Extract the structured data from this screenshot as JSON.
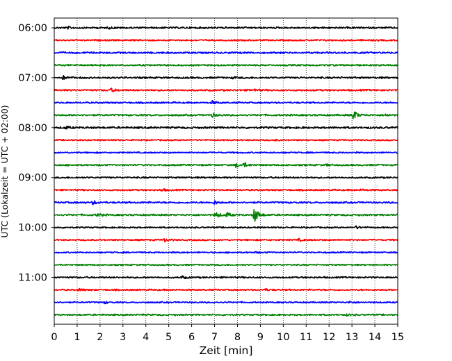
{
  "chart_data": {
    "type": "line",
    "chart_kind": "helicorder seismogram",
    "xlabel": "Zeit  [min]",
    "ylabel": "UTC (Lokalzeit = UTC + 02:00)",
    "xlim": [
      0,
      15
    ],
    "x_ticks": [
      "0",
      "1",
      "2",
      "3",
      "4",
      "5",
      "6",
      "7",
      "8",
      "9",
      "10",
      "11",
      "12",
      "13",
      "14",
      "15"
    ],
    "vertical_grid": "dotted, every 1 min",
    "start_time": "06:00",
    "minutes_per_line": 15,
    "y_tick_labels": [
      "06:00",
      "07:00",
      "08:00",
      "09:00",
      "10:00",
      "11:00"
    ],
    "colors": [
      "#000000",
      "#ff0000",
      "#0000ff",
      "#008000"
    ],
    "traces": [
      {
        "row": 0,
        "color": "#000000",
        "amplitude": 1.0,
        "events": [
          {
            "t": 0.6,
            "amp": 1.2
          },
          {
            "t": 2.4,
            "amp": 0.8
          }
        ]
      },
      {
        "row": 1,
        "color": "#ff0000",
        "amplitude": 0.9,
        "events": []
      },
      {
        "row": 2,
        "color": "#0000ff",
        "amplitude": 1.0,
        "events": []
      },
      {
        "row": 3,
        "color": "#008000",
        "amplitude": 0.9,
        "events": [
          {
            "t": 1.9,
            "amp": 2.0
          }
        ]
      },
      {
        "row": 4,
        "color": "#000000",
        "amplitude": 1.0,
        "events": [
          {
            "t": 0.4,
            "amp": 2.2
          },
          {
            "t": 7.8,
            "amp": 1.0
          }
        ]
      },
      {
        "row": 5,
        "color": "#ff0000",
        "amplitude": 1.0,
        "events": [
          {
            "t": 2.5,
            "amp": 2.2
          },
          {
            "t": 8.7,
            "amp": 1.6
          }
        ]
      },
      {
        "row": 6,
        "color": "#0000ff",
        "amplitude": 0.9,
        "events": [
          {
            "t": 6.9,
            "amp": 2.0
          }
        ]
      },
      {
        "row": 7,
        "color": "#008000",
        "amplitude": 1.0,
        "events": [
          {
            "t": 6.9,
            "amp": 2.8
          },
          {
            "t": 13.05,
            "amp": 8.0
          },
          {
            "t": 14.5,
            "amp": 1.6
          }
        ]
      },
      {
        "row": 8,
        "color": "#000000",
        "amplitude": 1.1,
        "events": [
          {
            "t": 0.5,
            "amp": 1.8
          }
        ]
      },
      {
        "row": 9,
        "color": "#ff0000",
        "amplitude": 0.8,
        "events": [
          {
            "t": 9.6,
            "amp": 1.0
          }
        ]
      },
      {
        "row": 10,
        "color": "#0000ff",
        "amplitude": 0.8,
        "events": []
      },
      {
        "row": 11,
        "color": "#008000",
        "amplitude": 0.9,
        "events": [
          {
            "t": 7.95,
            "amp": 3.6
          },
          {
            "t": 8.3,
            "amp": 3.0
          },
          {
            "t": 11.9,
            "amp": 1.2
          }
        ]
      },
      {
        "row": 12,
        "color": "#000000",
        "amplitude": 0.9,
        "events": []
      },
      {
        "row": 13,
        "color": "#ff0000",
        "amplitude": 0.9,
        "events": [
          {
            "t": 4.7,
            "amp": 1.8
          },
          {
            "t": 13.4,
            "amp": 1.2
          }
        ]
      },
      {
        "row": 14,
        "color": "#0000ff",
        "amplitude": 1.0,
        "events": [
          {
            "t": 1.7,
            "amp": 2.6
          },
          {
            "t": 7.0,
            "amp": 2.6
          }
        ]
      },
      {
        "row": 15,
        "color": "#008000",
        "amplitude": 1.0,
        "events": [
          {
            "t": 1.9,
            "amp": 2.2
          },
          {
            "t": 7.05,
            "amp": 4.5
          },
          {
            "t": 7.55,
            "amp": 3.0
          },
          {
            "t": 8.75,
            "amp": 12.0
          }
        ]
      },
      {
        "row": 16,
        "color": "#000000",
        "amplitude": 0.8,
        "events": [
          {
            "t": 13.2,
            "amp": 2.0
          }
        ]
      },
      {
        "row": 17,
        "color": "#ff0000",
        "amplitude": 0.9,
        "events": [
          {
            "t": 4.8,
            "amp": 2.4
          },
          {
            "t": 10.7,
            "amp": 1.4
          }
        ]
      },
      {
        "row": 18,
        "color": "#0000ff",
        "amplitude": 0.8,
        "events": [
          {
            "t": 8.8,
            "amp": 1.0
          }
        ]
      },
      {
        "row": 19,
        "color": "#008000",
        "amplitude": 0.8,
        "events": []
      },
      {
        "row": 20,
        "color": "#000000",
        "amplitude": 0.9,
        "events": [
          {
            "t": 5.6,
            "amp": 1.8
          }
        ]
      },
      {
        "row": 21,
        "color": "#ff0000",
        "amplitude": 0.9,
        "events": [
          {
            "t": 1.1,
            "amp": 1.8
          },
          {
            "t": 9.2,
            "amp": 1.2
          }
        ]
      },
      {
        "row": 22,
        "color": "#0000ff",
        "amplitude": 0.8,
        "events": [
          {
            "t": 2.2,
            "amp": 1.6
          },
          {
            "t": 12.9,
            "amp": 1.4
          }
        ]
      },
      {
        "row": 23,
        "color": "#008000",
        "amplitude": 0.9,
        "events": [
          {
            "t": 12.8,
            "amp": 1.4
          }
        ]
      }
    ]
  }
}
